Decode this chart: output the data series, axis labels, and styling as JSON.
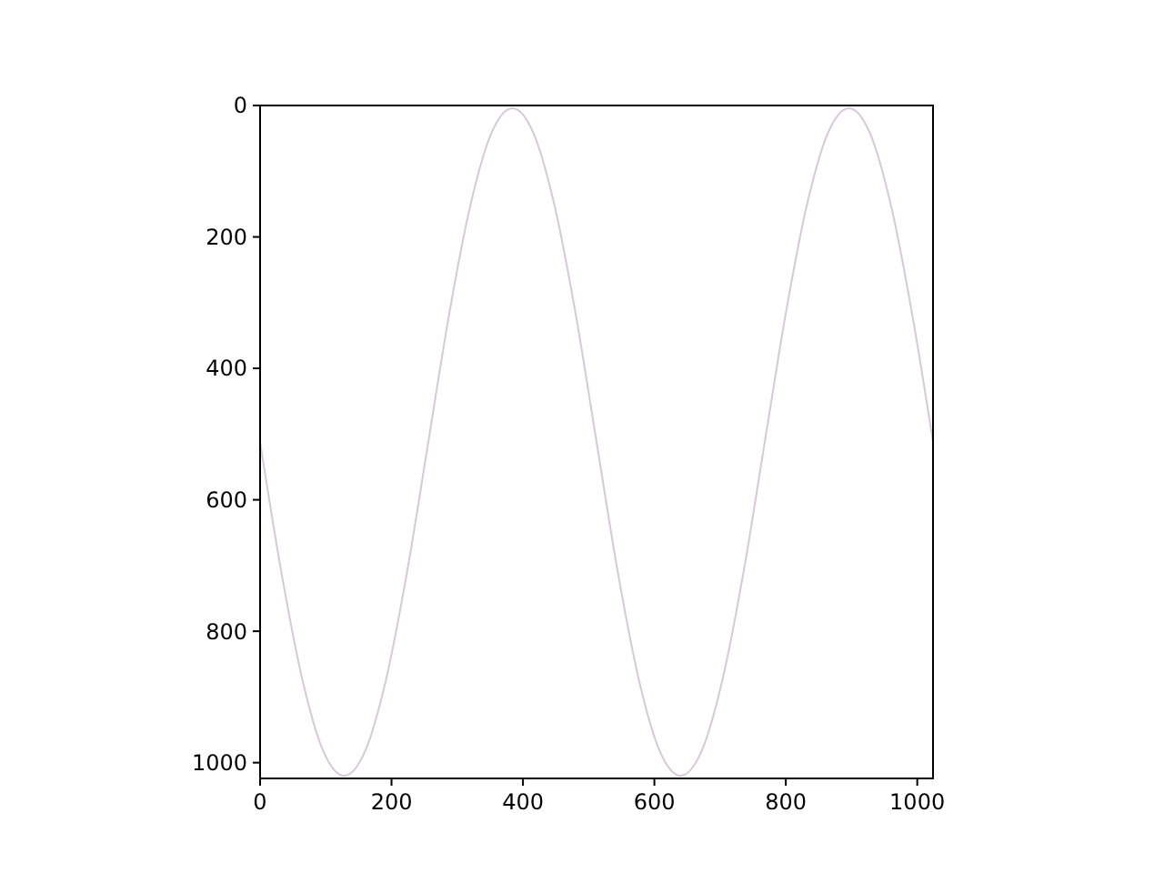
{
  "chart_data": {
    "type": "line",
    "x": [
      0,
      32,
      64,
      96,
      128,
      160,
      192,
      224,
      256,
      288,
      320,
      352,
      384,
      416,
      448,
      480,
      512,
      544,
      576,
      608,
      640,
      672,
      704,
      736,
      768,
      800,
      832,
      864,
      896,
      928,
      960,
      992,
      1024
    ],
    "series": [
      {
        "color": "#d9c6dc",
        "values": [
          512,
          708,
          872,
          982,
          1020,
          982,
          872,
          708,
          512,
          316,
          152,
          42,
          4,
          42,
          152,
          316,
          512,
          708,
          872,
          982,
          1020,
          982,
          872,
          708,
          512,
          316,
          152,
          42,
          4,
          42,
          152,
          316,
          512
        ]
      }
    ],
    "xlim": [
      0,
      1024
    ],
    "ylim": [
      1024,
      0
    ],
    "xticks": [
      0,
      200,
      400,
      600,
      800,
      1000
    ],
    "yticks": [
      0,
      200,
      400,
      600,
      800,
      1000
    ],
    "grid": false,
    "line_style": "solid"
  }
}
